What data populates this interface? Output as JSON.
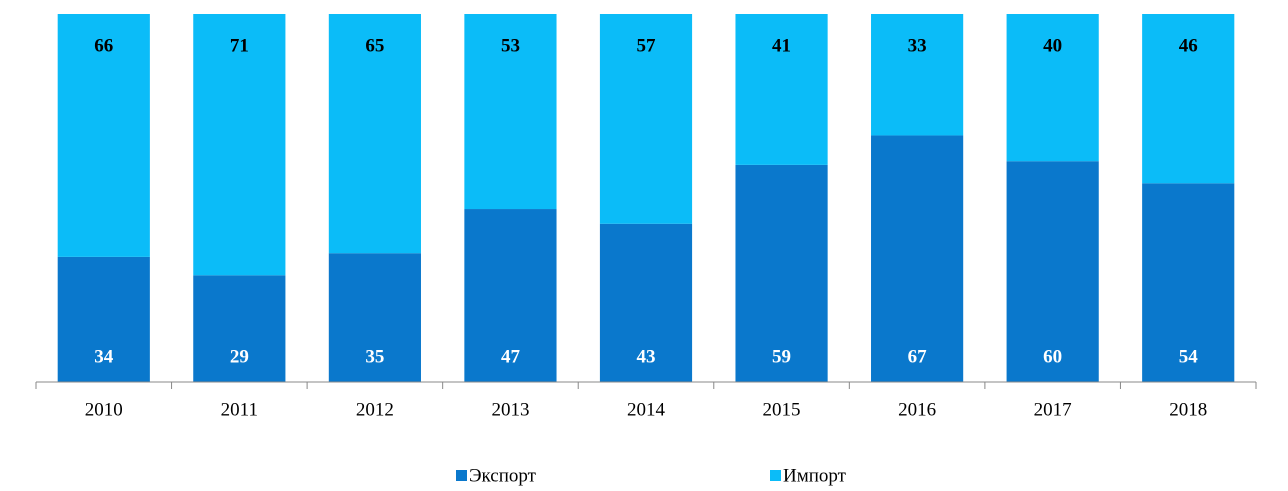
{
  "chart_data": {
    "type": "stacked_bar",
    "categories": [
      "2010",
      "2011",
      "2012",
      "2013",
      "2014",
      "2015",
      "2016",
      "2017",
      "2018"
    ],
    "series": [
      {
        "name": "Экспорт",
        "color": "#0a78cc",
        "values": [
          34,
          29,
          35,
          47,
          43,
          59,
          67,
          60,
          54
        ]
      },
      {
        "name": "Импорт",
        "color": "#0bbcf8",
        "values": [
          66,
          71,
          65,
          53,
          57,
          41,
          33,
          40,
          46
        ]
      }
    ],
    "ylim": [
      0,
      100
    ],
    "legend": "bottom"
  }
}
